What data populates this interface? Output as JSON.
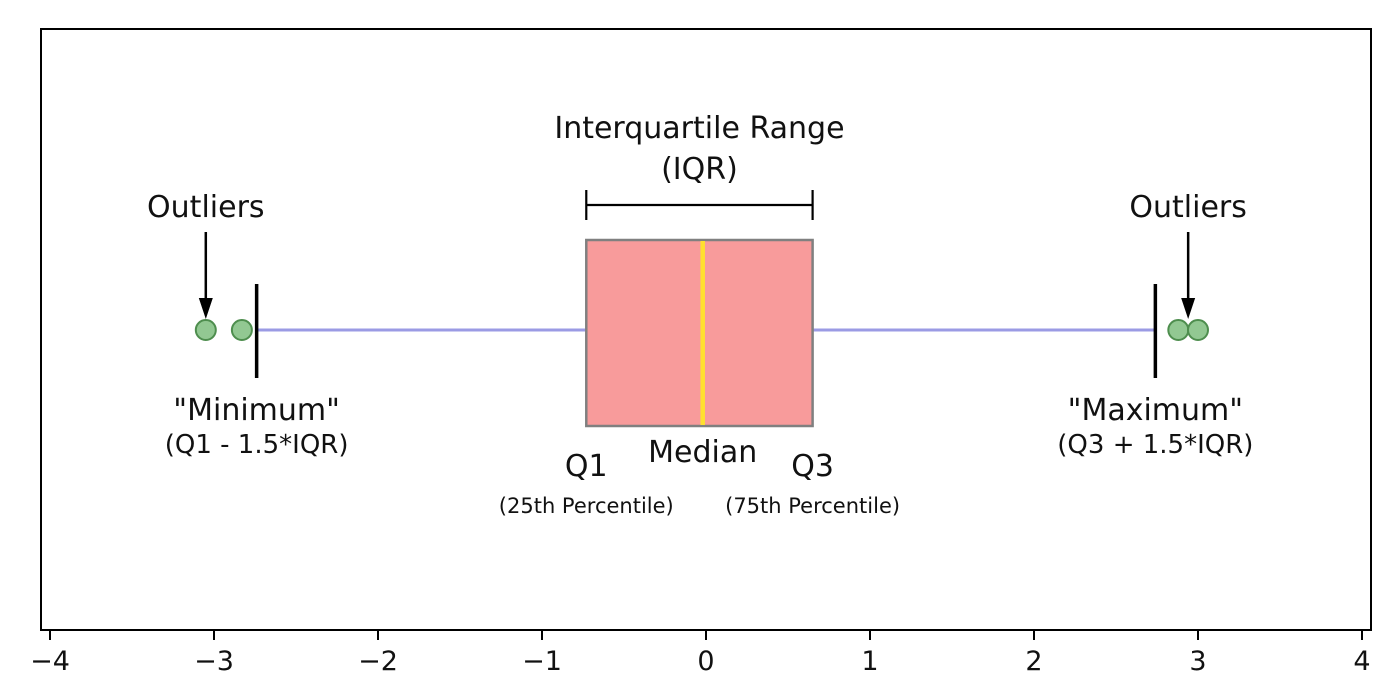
{
  "chart_data": {
    "type": "boxplot",
    "orientation": "horizontal",
    "title": "",
    "xlabel": "",
    "ylabel": "",
    "grid": false,
    "legend": "none",
    "xlim": [
      -4,
      4
    ],
    "x_tick_values": [
      -4,
      -3,
      -2,
      -1,
      0,
      1,
      2,
      3,
      4
    ],
    "x_tick_labels": [
      "−4",
      "−3",
      "−2",
      "−1",
      "0",
      "1",
      "2",
      "3",
      "4"
    ],
    "box": {
      "q1": -0.73,
      "median": -0.02,
      "q3": 0.65,
      "whisker_low": -2.74,
      "whisker_high": 2.74
    },
    "outliers_low": [
      -3.05,
      -2.83
    ],
    "outliers_high": [
      2.88,
      3.0
    ],
    "annotations": {
      "iqr_title": "Interquartile Range",
      "iqr_sub": "(IQR)",
      "outliers_left": "Outliers",
      "outliers_right": "Outliers",
      "minimum": "\"Minimum\"",
      "minimum_formula": "(Q1 - 1.5*IQR)",
      "maximum": "\"Maximum\"",
      "maximum_formula": "(Q3 + 1.5*IQR)",
      "q1": "Q1",
      "q1_sub": "(25th Percentile)",
      "median": "Median",
      "q3": "Q3",
      "q3_sub": "(75th Percentile)",
      "arrow_left_x": -3.05,
      "arrow_right_x": 2.94
    },
    "colors": {
      "box_fill": "#f89b9b",
      "box_edge": "#808080",
      "median": "#ffe02e",
      "whisker": "#9b9be4",
      "cap": "#000000",
      "outlier_fill": "#92c892",
      "outlier_edge": "#4e8e4e",
      "annotation": "#000000",
      "axis": "#000000"
    }
  }
}
